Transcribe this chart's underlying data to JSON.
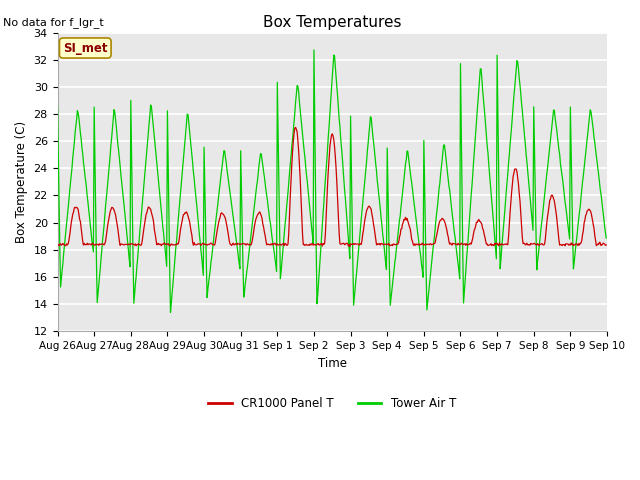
{
  "title": "Box Temperatures",
  "xlabel": "Time",
  "ylabel": "Box Temperature (C)",
  "no_data_text": "No data for f_lgr_t",
  "si_met_label": "SI_met",
  "ylim": [
    12,
    34
  ],
  "yticks": [
    12,
    14,
    16,
    18,
    20,
    22,
    24,
    26,
    28,
    30,
    32,
    34
  ],
  "plot_bg_color": "#e8e8e8",
  "line_color_red": "#cc0000",
  "line_color_green": "#00cc00",
  "legend_red_label": "CR1000 Panel T",
  "legend_green_label": "Tower Air T",
  "x_tick_labels": [
    "Aug 26",
    "Aug 27",
    "Aug 28",
    "Aug 29",
    "Aug 30",
    "Aug 31",
    "Sep 1",
    "Sep 2",
    "Sep 3",
    "Sep 4",
    "Sep 5",
    "Sep 6",
    "Sep 7",
    "Sep 8",
    "Sep 9",
    "Sep 10"
  ],
  "n_days": 15,
  "pts_per_day": 48,
  "green_base": 18.5,
  "green_night": 14.5,
  "red_base": 18.4,
  "green_peaks": [
    28.5,
    14.0,
    28.5,
    14.0,
    28.9,
    14.0,
    28.3,
    14.0,
    25.5,
    14.5,
    13.3,
    25.3,
    15.0,
    13.8,
    30.4,
    15.7,
    32.7,
    13.8,
    28.0,
    13.8,
    25.5,
    13.8,
    26.0,
    13.5,
    31.7,
    14.0,
    32.3,
    14.0,
    28.5,
    16.5
  ],
  "red_peaks": [
    21.2,
    18.5,
    18.5,
    18.5,
    21.1,
    18.5,
    21.1,
    18.5,
    20.8,
    18.5,
    18.5,
    20.7,
    18.5,
    18.5,
    27.0,
    18.5,
    26.6,
    18.5,
    21.2,
    18.4,
    20.3,
    18.4,
    20.3,
    18.4,
    20.2,
    18.4,
    24.0,
    18.4,
    22.0,
    18.4
  ]
}
